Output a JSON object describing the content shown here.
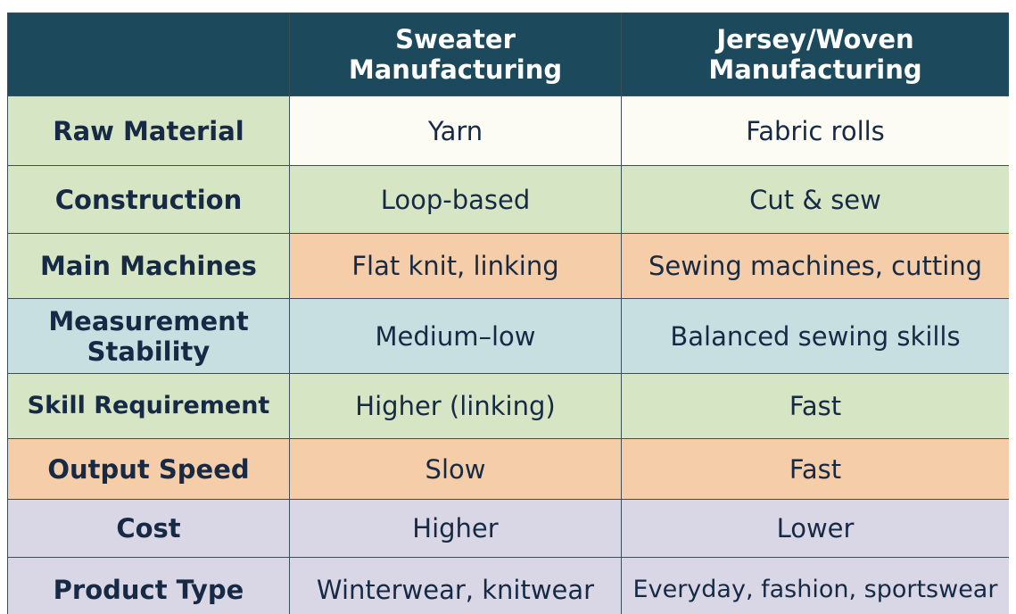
{
  "table": {
    "columns": [
      "Sweater Manufacturing",
      "Jersey/Woven Manufacturing"
    ],
    "rows": [
      {
        "label": "Raw Material",
        "values": [
          "Yarn",
          "Fabric rolls"
        ]
      },
      {
        "label": "Construction",
        "values": [
          "Loop-based",
          "Cut & sew"
        ]
      },
      {
        "label": "Main Machines",
        "values": [
          "Flat knit, linking",
          "Sewing machines, cutting"
        ]
      },
      {
        "label": "Measurement Stability",
        "values": [
          "Medium–low",
          "Balanced sewing skills"
        ]
      },
      {
        "label": "Skill Requirement",
        "values": [
          "Higher (linking)",
          "Fast"
        ]
      },
      {
        "label": "Output Speed",
        "values": [
          "Slow",
          "Fast"
        ]
      },
      {
        "label": "Cost",
        "values": [
          "Higher",
          "Lower"
        ]
      },
      {
        "label": "Product Type",
        "values": [
          "Winterwear, knitwear",
          "Everyday, fashion, sportswear"
        ]
      }
    ]
  }
}
